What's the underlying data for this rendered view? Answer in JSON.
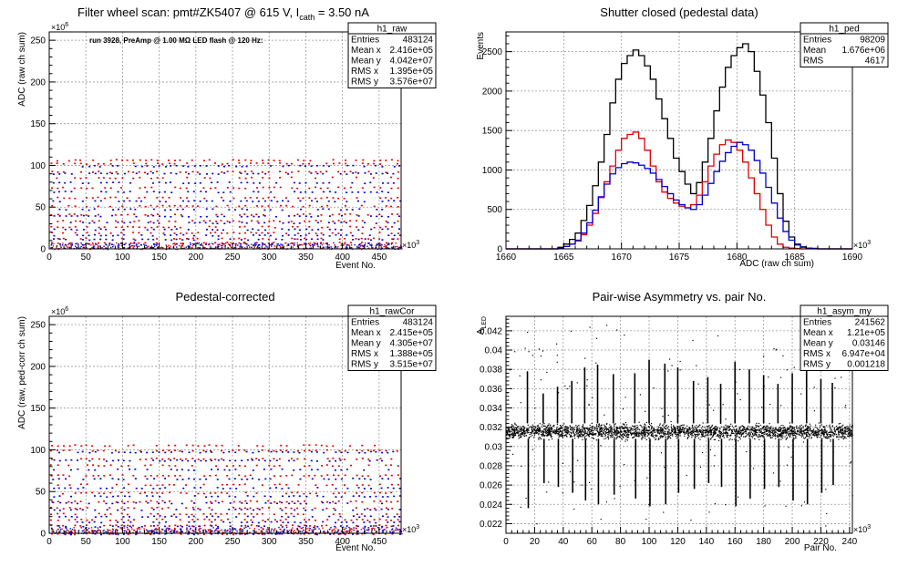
{
  "chart_data": [
    {
      "id": "raw",
      "type": "scatter",
      "title": "Filter wheel scan: pmt#ZK5407 @   615 V, I",
      "title_sub": "cath",
      "title_suffix": " = 3.50 nA",
      "annotation": "run 3928, PreAmp @ 1.00 MΩ LED flash @  120 Hz:",
      "xlabel": "Event No.",
      "ylabel": "ADC (raw ch sum)",
      "xlim": [
        0,
        480
      ],
      "ylim": [
        0,
        260
      ],
      "x_exponent": "×10",
      "x_exponent_power": "3",
      "y_exponent": "×10",
      "y_exponent_power": "6",
      "xticks": [
        0,
        50,
        100,
        150,
        200,
        250,
        300,
        350,
        400,
        450
      ],
      "yticks": [
        0,
        50,
        100,
        150,
        200,
        250
      ],
      "grid": true,
      "stats": {
        "name": "h1_raw",
        "rows": [
          [
            "Entries",
            "483124"
          ],
          [
            "Mean x",
            "2.416e+05"
          ],
          [
            "Mean y",
            "4.042e+07"
          ],
          [
            "RMS x",
            "1.395e+05"
          ],
          [
            "RMS y",
            "3.576e+07"
          ]
        ]
      },
      "level_groups": [
        {
          "name": "red",
          "levels": [
            2,
            8,
            13,
            20,
            27,
            34,
            42,
            52,
            62,
            74,
            86,
            93,
            103,
            107
          ]
        },
        {
          "name": "blue",
          "levels": [
            2,
            6,
            12,
            17,
            24,
            32,
            40,
            48,
            58,
            69,
            80,
            91,
            100
          ]
        }
      ],
      "colors": {
        "red": "#e00000",
        "blue": "#0000d0",
        "grid": "#888888"
      }
    },
    {
      "id": "ped",
      "type": "line",
      "title": "Shutter closed (pedestal data)",
      "xlabel": "ADC (raw ch sum)",
      "ylabel": "Events",
      "xlim": [
        1660,
        1690
      ],
      "ylim": [
        0,
        2750
      ],
      "x_exponent": "×10",
      "x_exponent_power": "3",
      "xticks": [
        1660,
        1665,
        1670,
        1675,
        1680,
        1685,
        1690
      ],
      "yticks": [
        0,
        500,
        1000,
        1500,
        2000,
        2500
      ],
      "grid": true,
      "stats": {
        "name": "h1_ped",
        "rows": [
          [
            "Entries",
            "98209"
          ],
          [
            "Mean",
            "1.676e+06"
          ],
          [
            "RMS",
            "4617"
          ]
        ]
      },
      "bin_width": 0.5,
      "series": [
        {
          "color": "#000000",
          "x": [
            1660,
            1660.5,
            1661,
            1661.5,
            1662,
            1662.5,
            1663,
            1663.5,
            1664,
            1664.5,
            1665,
            1665.5,
            1666,
            1666.5,
            1667,
            1667.5,
            1668,
            1668.5,
            1669,
            1669.5,
            1670,
            1670.5,
            1671,
            1671.5,
            1672,
            1672.5,
            1673,
            1673.5,
            1674,
            1674.5,
            1675,
            1675.5,
            1676,
            1676.5,
            1677,
            1677.5,
            1678,
            1678.5,
            1679,
            1679.5,
            1680,
            1680.5,
            1681,
            1681.5,
            1682,
            1682.5,
            1683,
            1683.5,
            1684,
            1684.5,
            1685,
            1685.5,
            1686,
            1686.5,
            1687,
            1687.5,
            1688,
            1688.5,
            1689,
            1689.5
          ],
          "values": [
            0,
            0,
            0,
            0,
            0,
            0,
            0,
            0,
            0,
            20,
            60,
            120,
            200,
            360,
            550,
            800,
            1100,
            1450,
            1850,
            2150,
            2350,
            2450,
            2520,
            2450,
            2320,
            2150,
            1900,
            1650,
            1400,
            1150,
            980,
            820,
            700,
            840,
            1100,
            1400,
            1750,
            2050,
            2300,
            2450,
            2550,
            2600,
            2500,
            2250,
            1950,
            1600,
            1150,
            700,
            350,
            150,
            60,
            25,
            10,
            5,
            0,
            0,
            0,
            0,
            0,
            0
          ]
        },
        {
          "color": "#e00000",
          "x": [
            1660,
            1660.5,
            1661,
            1661.5,
            1662,
            1662.5,
            1663,
            1663.5,
            1664,
            1664.5,
            1665,
            1665.5,
            1666,
            1666.5,
            1667,
            1667.5,
            1668,
            1668.5,
            1669,
            1669.5,
            1670,
            1670.5,
            1671,
            1671.5,
            1672,
            1672.5,
            1673,
            1673.5,
            1674,
            1674.5,
            1675,
            1675.5,
            1676,
            1676.5,
            1677,
            1677.5,
            1678,
            1678.5,
            1679,
            1679.5,
            1680,
            1680.5,
            1681,
            1681.5,
            1682,
            1682.5,
            1683,
            1683.5,
            1684,
            1684.5,
            1685,
            1685.5,
            1686,
            1686.5,
            1687,
            1687.5,
            1688,
            1688.5,
            1689,
            1689.5
          ],
          "values": [
            0,
            0,
            0,
            0,
            0,
            0,
            0,
            0,
            0,
            10,
            30,
            60,
            100,
            180,
            300,
            450,
            650,
            850,
            1050,
            1250,
            1400,
            1450,
            1480,
            1400,
            1250,
            1050,
            850,
            720,
            640,
            580,
            540,
            520,
            560,
            680,
            850,
            1050,
            1200,
            1320,
            1380,
            1350,
            1250,
            1100,
            900,
            700,
            500,
            300,
            150,
            60,
            20,
            10,
            5,
            0,
            0,
            0,
            0,
            0,
            0,
            0,
            0,
            0
          ]
        },
        {
          "color": "#0000d0",
          "x": [
            1660,
            1660.5,
            1661,
            1661.5,
            1662,
            1662.5,
            1663,
            1663.5,
            1664,
            1664.5,
            1665,
            1665.5,
            1666,
            1666.5,
            1667,
            1667.5,
            1668,
            1668.5,
            1669,
            1669.5,
            1670,
            1670.5,
            1671,
            1671.5,
            1672,
            1672.5,
            1673,
            1673.5,
            1674,
            1674.5,
            1675,
            1675.5,
            1676,
            1676.5,
            1677,
            1677.5,
            1678,
            1678.5,
            1679,
            1679.5,
            1680,
            1680.5,
            1681,
            1681.5,
            1682,
            1682.5,
            1683,
            1683.5,
            1684,
            1684.5,
            1685,
            1685.5,
            1686,
            1686.5,
            1687,
            1687.5,
            1688,
            1688.5,
            1689,
            1689.5
          ],
          "values": [
            0,
            0,
            0,
            0,
            0,
            0,
            0,
            0,
            0,
            10,
            30,
            60,
            110,
            200,
            330,
            490,
            660,
            820,
            950,
            1030,
            1080,
            1100,
            1090,
            1060,
            1020,
            960,
            880,
            790,
            700,
            620,
            560,
            520,
            500,
            560,
            680,
            830,
            980,
            1110,
            1220,
            1300,
            1350,
            1320,
            1250,
            1120,
            960,
            780,
            580,
            390,
            220,
            110,
            50,
            20,
            10,
            5,
            0,
            0,
            0,
            0,
            0,
            0
          ]
        }
      ]
    },
    {
      "id": "rawCor",
      "type": "scatter",
      "title": "Pedestal-corrected",
      "xlabel": "Event No.",
      "ylabel": "ADC (raw, ped-corr ch sum)",
      "xlim": [
        0,
        480
      ],
      "ylim": [
        0,
        260
      ],
      "x_exponent": "×10",
      "x_exponent_power": "3",
      "y_exponent": "×10",
      "y_exponent_power": "6",
      "xticks": [
        0,
        50,
        100,
        150,
        200,
        250,
        300,
        350,
        400,
        450
      ],
      "yticks": [
        0,
        50,
        100,
        150,
        200,
        250
      ],
      "grid": true,
      "stats": {
        "name": "h1_rawCor",
        "rows": [
          [
            "Entries",
            "483124"
          ],
          [
            "Mean x",
            "2.415e+05"
          ],
          [
            "Mean y",
            "4.305e+07"
          ],
          [
            "RMS x",
            "1.388e+05"
          ],
          [
            "RMS y",
            "3.515e+07"
          ]
        ]
      },
      "level_groups": [
        {
          "name": "red",
          "levels": [
            0,
            5,
            10,
            17,
            24,
            31,
            39,
            49,
            59,
            70,
            82,
            90,
            100,
            106
          ]
        },
        {
          "name": "blue",
          "levels": [
            0,
            3,
            9,
            14,
            21,
            29,
            37,
            45,
            55,
            66,
            77,
            88,
            98
          ]
        }
      ],
      "colors": {
        "red": "#e00000",
        "blue": "#0000d0",
        "grid": "#888888"
      }
    },
    {
      "id": "asym",
      "type": "scatter",
      "title": "Pair-wise Asymmetry vs. pair No.",
      "xlabel": "Pair No.",
      "ylabel": "A",
      "ylabel_sub": "LED",
      "xlim": [
        0,
        242
      ],
      "ylim": [
        0.021,
        0.0435
      ],
      "x_exponent": "×10",
      "x_exponent_power": "3",
      "xticks": [
        0,
        20,
        40,
        60,
        80,
        100,
        120,
        140,
        160,
        180,
        200,
        220,
        240
      ],
      "yticks": [
        0.022,
        0.024,
        0.026,
        0.028,
        0.03,
        0.032,
        0.034,
        0.036,
        0.038,
        0.04,
        0.042
      ],
      "ytick_labels": [
        "0.022",
        "0.024",
        "0.026",
        "0.028",
        "0.03",
        "0.032",
        "0.034",
        "0.036",
        "0.038",
        "0.04",
        "0.042"
      ],
      "grid": true,
      "stats": {
        "name": "h1_asym_my",
        "rows": [
          [
            "Entries",
            "241562"
          ],
          [
            "Mean x",
            "1.21e+05"
          ],
          [
            "Mean y",
            "0.03146"
          ],
          [
            "RMS x",
            "6.947e+04"
          ],
          [
            "RMS y",
            "0.001218"
          ]
        ]
      },
      "band_center": 0.0316,
      "band_halfwidth": 0.0006,
      "spikes": [
        {
          "x": 15,
          "top": 0.0378,
          "bottom": 0.0236
        },
        {
          "x": 26,
          "top": 0.0355,
          "bottom": 0.0262
        },
        {
          "x": 36,
          "top": 0.0362,
          "bottom": 0.0258
        },
        {
          "x": 46,
          "top": 0.0368,
          "bottom": 0.0252
        },
        {
          "x": 55,
          "top": 0.0382,
          "bottom": 0.0244
        },
        {
          "x": 64,
          "top": 0.0385,
          "bottom": 0.024
        },
        {
          "x": 75,
          "top": 0.0375,
          "bottom": 0.025
        },
        {
          "x": 90,
          "top": 0.0376,
          "bottom": 0.0246
        },
        {
          "x": 100,
          "top": 0.039,
          "bottom": 0.0238
        },
        {
          "x": 111,
          "top": 0.0386,
          "bottom": 0.024
        },
        {
          "x": 120,
          "top": 0.0382,
          "bottom": 0.0252
        },
        {
          "x": 131,
          "top": 0.0368,
          "bottom": 0.0256
        },
        {
          "x": 141,
          "top": 0.0372,
          "bottom": 0.0262
        },
        {
          "x": 150,
          "top": 0.0365,
          "bottom": 0.0258
        },
        {
          "x": 160,
          "top": 0.0388,
          "bottom": 0.0238
        },
        {
          "x": 170,
          "top": 0.038,
          "bottom": 0.0246
        },
        {
          "x": 180,
          "top": 0.0374,
          "bottom": 0.0256
        },
        {
          "x": 190,
          "top": 0.0365,
          "bottom": 0.0258
        },
        {
          "x": 200,
          "top": 0.0376,
          "bottom": 0.0244
        },
        {
          "x": 210,
          "top": 0.0384,
          "bottom": 0.024
        },
        {
          "x": 220,
          "top": 0.037,
          "bottom": 0.0252
        },
        {
          "x": 228,
          "top": 0.0366,
          "bottom": 0.026
        }
      ]
    }
  ]
}
